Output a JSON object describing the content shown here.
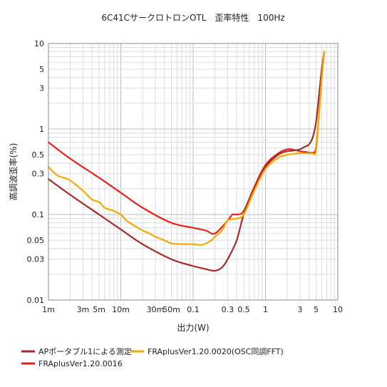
{
  "chart_data": {
    "type": "line",
    "title": "6C41CサークロトロンOTL　歪率特性　100Hz",
    "xlabel": "出力(W)",
    "ylabel": "高調波歪率(%)",
    "xscale": "log",
    "yscale": "log",
    "xlim": [
      0.001,
      10
    ],
    "ylim": [
      0.01,
      10
    ],
    "grid": true,
    "legend_position": "bottom",
    "x_ticks": [
      {
        "value": 0.001,
        "label": "1m"
      },
      {
        "value": 0.003,
        "label": "3m"
      },
      {
        "value": 0.005,
        "label": "5m"
      },
      {
        "value": 0.01,
        "label": "10m"
      },
      {
        "value": 0.03,
        "label": "30m"
      },
      {
        "value": 0.05,
        "label": "50m"
      },
      {
        "value": 0.1,
        "label": "0.1"
      },
      {
        "value": 0.3,
        "label": "0.3"
      },
      {
        "value": 0.5,
        "label": "0.5"
      },
      {
        "value": 1,
        "label": "1"
      },
      {
        "value": 3,
        "label": "3"
      },
      {
        "value": 5,
        "label": "5"
      },
      {
        "value": 10,
        "label": "10"
      }
    ],
    "y_ticks": [
      {
        "value": 0.01,
        "label": "0.01"
      },
      {
        "value": 0.03,
        "label": "0.03"
      },
      {
        "value": 0.05,
        "label": "0.05"
      },
      {
        "value": 0.1,
        "label": "0.1"
      },
      {
        "value": 0.3,
        "label": "0.3"
      },
      {
        "value": 0.5,
        "label": "0.5"
      },
      {
        "value": 1,
        "label": "1"
      },
      {
        "value": 3,
        "label": "3"
      },
      {
        "value": 5,
        "label": "5"
      },
      {
        "value": 10,
        "label": "10"
      }
    ],
    "series": [
      {
        "name": "APポータブル1による測定",
        "color": "#a52a2a",
        "x": [
          0.001,
          0.002,
          0.005,
          0.01,
          0.02,
          0.05,
          0.1,
          0.15,
          0.2,
          0.25,
          0.3,
          0.4,
          0.5,
          0.7,
          1.0,
          1.5,
          2.0,
          2.5,
          3.0,
          3.5,
          4.0,
          4.5,
          5.0,
          5.5,
          6.0,
          6.5
        ],
        "y": [
          0.26,
          0.17,
          0.1,
          0.067,
          0.045,
          0.03,
          0.025,
          0.023,
          0.022,
          0.024,
          0.03,
          0.05,
          0.1,
          0.2,
          0.36,
          0.5,
          0.55,
          0.56,
          0.58,
          0.62,
          0.66,
          0.8,
          1.2,
          2.5,
          5.0,
          8.0
        ]
      },
      {
        "name": "FRAplusVer1.20.0016",
        "color": "#e8201b",
        "x": [
          0.001,
          0.002,
          0.005,
          0.01,
          0.02,
          0.05,
          0.1,
          0.15,
          0.2,
          0.3,
          0.35,
          0.4,
          0.5,
          0.7,
          1.0,
          1.5,
          2.0,
          2.5,
          3.0,
          3.5,
          4.0,
          4.5,
          5.0,
          5.5,
          6.0,
          6.5
        ],
        "y": [
          0.7,
          0.45,
          0.27,
          0.18,
          0.12,
          0.08,
          0.07,
          0.065,
          0.06,
          0.085,
          0.1,
          0.1,
          0.11,
          0.21,
          0.38,
          0.52,
          0.58,
          0.57,
          0.55,
          0.54,
          0.53,
          0.53,
          0.6,
          1.5,
          4.0,
          8.0
        ]
      },
      {
        "name": "FRAplusVer1.20.0020(OSC同調FFT)",
        "color": "#f5a800",
        "x": [
          0.001,
          0.0013,
          0.0016,
          0.002,
          0.003,
          0.004,
          0.005,
          0.006,
          0.008,
          0.01,
          0.012,
          0.015,
          0.02,
          0.025,
          0.03,
          0.04,
          0.05,
          0.07,
          0.1,
          0.13,
          0.15,
          0.18,
          0.2,
          0.25,
          0.3,
          0.4,
          0.5,
          0.7,
          1.0,
          1.5,
          2.0,
          3.0,
          4.0,
          4.5,
          5.0,
          5.5,
          6.0,
          6.5
        ],
        "y": [
          0.36,
          0.29,
          0.27,
          0.25,
          0.19,
          0.15,
          0.14,
          0.12,
          0.11,
          0.1,
          0.085,
          0.075,
          0.065,
          0.06,
          0.055,
          0.05,
          0.046,
          0.045,
          0.045,
          0.044,
          0.046,
          0.05,
          0.055,
          0.065,
          0.085,
          0.09,
          0.1,
          0.19,
          0.34,
          0.46,
          0.5,
          0.52,
          0.52,
          0.52,
          0.55,
          1.5,
          4.0,
          8.0
        ]
      }
    ]
  }
}
